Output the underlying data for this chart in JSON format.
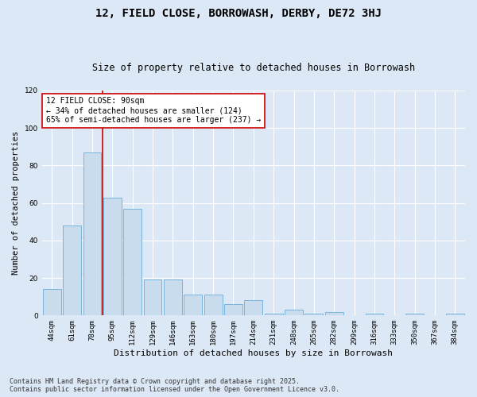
{
  "title": "12, FIELD CLOSE, BORROWASH, DERBY, DE72 3HJ",
  "subtitle": "Size of property relative to detached houses in Borrowash",
  "xlabel": "Distribution of detached houses by size in Borrowash",
  "ylabel": "Number of detached properties",
  "categories": [
    "44sqm",
    "61sqm",
    "78sqm",
    "95sqm",
    "112sqm",
    "129sqm",
    "146sqm",
    "163sqm",
    "180sqm",
    "197sqm",
    "214sqm",
    "231sqm",
    "248sqm",
    "265sqm",
    "282sqm",
    "299sqm",
    "316sqm",
    "333sqm",
    "350sqm",
    "367sqm",
    "384sqm"
  ],
  "values": [
    14,
    48,
    87,
    63,
    57,
    19,
    19,
    11,
    11,
    6,
    8,
    1,
    3,
    1,
    2,
    0,
    1,
    0,
    1,
    0,
    1
  ],
  "bar_color": "#c9dced",
  "bar_edge_color": "#6aaed6",
  "vline_color": "#cc0000",
  "vline_x": 2.5,
  "annotation_text": "12 FIELD CLOSE: 90sqm\n← 34% of detached houses are smaller (124)\n65% of semi-detached houses are larger (237) →",
  "annotation_box_facecolor": "#ffffff",
  "annotation_box_edgecolor": "#cc0000",
  "ylim": [
    0,
    120
  ],
  "yticks": [
    0,
    20,
    40,
    60,
    80,
    100,
    120
  ],
  "plot_bg_color": "#dce8f5",
  "fig_bg_color": "#dce8f5",
  "grid_color": "#ffffff",
  "footer_line1": "Contains HM Land Registry data © Crown copyright and database right 2025.",
  "footer_line2": "Contains public sector information licensed under the Open Government Licence v3.0.",
  "title_fontsize": 10,
  "subtitle_fontsize": 8.5,
  "ylabel_fontsize": 7.5,
  "xlabel_fontsize": 8,
  "tick_fontsize": 6.5,
  "annotation_fontsize": 7,
  "footer_fontsize": 6
}
